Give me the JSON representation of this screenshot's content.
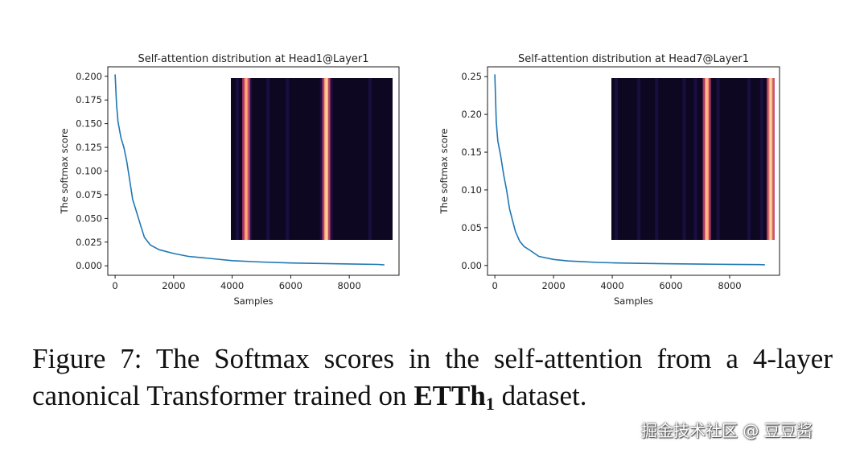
{
  "chart_data": [
    {
      "type": "line",
      "title": "Self-attention distribution at Head1@Layer1",
      "xlabel": "Samples",
      "ylabel": "The softmax score",
      "xlim": [
        -250,
        9700
      ],
      "ylim": [
        -0.01,
        0.21
      ],
      "xticks": [
        0,
        2000,
        4000,
        6000,
        8000
      ],
      "xtick_labels": [
        "0",
        "2000",
        "4000",
        "6000",
        "8000"
      ],
      "yticks": [
        0.0,
        0.025,
        0.05,
        0.075,
        0.1,
        0.125,
        0.15,
        0.175,
        0.2
      ],
      "ytick_labels": [
        "0.000",
        "0.025",
        "0.050",
        "0.075",
        "0.100",
        "0.125",
        "0.150",
        "0.175",
        "0.200"
      ],
      "grid": false,
      "series": [
        {
          "color": "#1f77b4",
          "x": [
            0,
            50,
            100,
            200,
            300,
            400,
            500,
            600,
            700,
            850,
            1000,
            1200,
            1500,
            2000,
            2500,
            3000,
            3500,
            4000,
            5000,
            6000,
            7000,
            8000,
            9000,
            9200
          ],
          "y": [
            0.202,
            0.17,
            0.152,
            0.135,
            0.125,
            0.11,
            0.09,
            0.07,
            0.06,
            0.045,
            0.03,
            0.022,
            0.017,
            0.013,
            0.01,
            0.0085,
            0.007,
            0.0055,
            0.004,
            0.003,
            0.0025,
            0.002,
            0.0015,
            0.001
          ]
        }
      ],
      "inset_heatmap": {
        "type": "heatmap",
        "colormap": "magma",
        "bright_columns": [
          {
            "position": 0.095,
            "intensity": 0.9
          },
          {
            "position": 0.59,
            "intensity": 1.0
          }
        ],
        "faint_columns": [
          0.04,
          0.12,
          0.23,
          0.35,
          0.56,
          0.62,
          0.86
        ]
      }
    },
    {
      "type": "line",
      "title": "Self-attention distribution at Head7@Layer1",
      "xlabel": "Samples",
      "ylabel": "The softmax score",
      "xlim": [
        -250,
        9700
      ],
      "ylim": [
        -0.013,
        0.263
      ],
      "xticks": [
        0,
        2000,
        4000,
        6000,
        8000
      ],
      "xtick_labels": [
        "0",
        "2000",
        "4000",
        "6000",
        "8000"
      ],
      "yticks": [
        0.0,
        0.05,
        0.1,
        0.15,
        0.2,
        0.25
      ],
      "ytick_labels": [
        "0.00",
        "0.05",
        "0.10",
        "0.15",
        "0.20",
        "0.25"
      ],
      "grid": false,
      "series": [
        {
          "color": "#1f77b4",
          "x": [
            0,
            50,
            100,
            200,
            300,
            400,
            500,
            600,
            700,
            850,
            1000,
            1200,
            1500,
            2000,
            2500,
            3000,
            3500,
            4000,
            5000,
            6000,
            7000,
            8000,
            9000,
            9200
          ],
          "y": [
            0.253,
            0.19,
            0.165,
            0.145,
            0.12,
            0.1,
            0.075,
            0.06,
            0.045,
            0.032,
            0.025,
            0.02,
            0.012,
            0.008,
            0.006,
            0.005,
            0.004,
            0.0035,
            0.0028,
            0.0022,
            0.0018,
            0.0015,
            0.0012,
            0.001
          ]
        }
      ],
      "inset_heatmap": {
        "type": "heatmap",
        "colormap": "magma",
        "bright_columns": [
          {
            "position": 0.59,
            "intensity": 0.95
          },
          {
            "position": 0.985,
            "intensity": 1.0
          }
        ],
        "faint_columns": [
          0.03,
          0.17,
          0.28,
          0.45,
          0.52,
          0.66,
          0.85,
          0.93
        ]
      }
    }
  ],
  "caption": {
    "prefix": "Figure 7: The Softmax scores in the self-attention from a 4-layer canonical Transformer trained on ",
    "dataset": "ETTh",
    "dataset_subscript": "1",
    "suffix": " dataset."
  },
  "watermark": "掘金技术社区 @ 豆豆酱"
}
